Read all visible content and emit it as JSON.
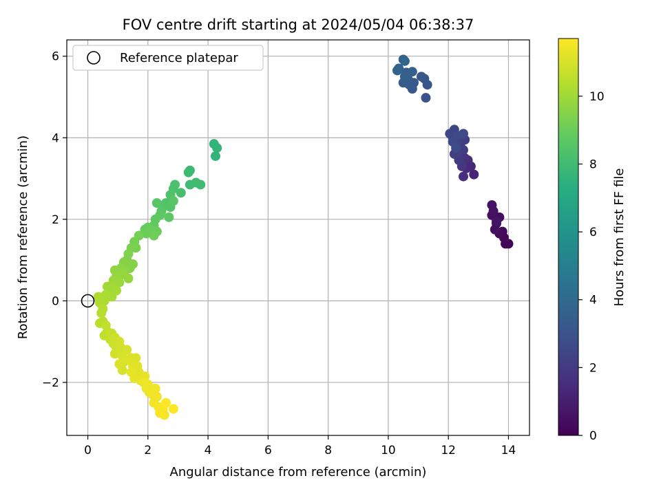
{
  "chart_data": {
    "type": "scatter",
    "title": "FOV centre drift starting at 2024/05/04 06:38:37",
    "xlabel": "Angular distance from reference (arcmin)",
    "ylabel": "Rotation from reference (arcmin)",
    "xlim": [
      -0.7,
      14.7
    ],
    "ylim": [
      -3.3,
      6.4
    ],
    "xticks": [
      0,
      2,
      4,
      6,
      8,
      10,
      12,
      14
    ],
    "xtick_labels": [
      "0",
      "2",
      "4",
      "6",
      "8",
      "10",
      "12",
      "14"
    ],
    "yticks": [
      -2,
      0,
      2,
      4,
      6
    ],
    "ytick_labels": [
      "−2",
      "0",
      "2",
      "4",
      "6"
    ],
    "grid": true,
    "legend": {
      "location": "upper-left",
      "entries": [
        {
          "label": "Reference platepar",
          "marker": "open-circle"
        }
      ]
    },
    "reference_point": {
      "x": 0,
      "y": 0
    },
    "colorbar": {
      "label": "Hours from first FF file",
      "colormap": "viridis",
      "range": [
        0,
        11.7
      ],
      "ticks": [
        0,
        2,
        4,
        6,
        8,
        10
      ],
      "tick_labels": [
        "0",
        "2",
        "4",
        "6",
        "8",
        "10"
      ]
    },
    "series": [
      {
        "points": [
          [
            14.0,
            1.4,
            0.1
          ],
          [
            13.9,
            1.4,
            0.15
          ],
          [
            13.85,
            1.55,
            0.2
          ],
          [
            13.8,
            1.7,
            0.25
          ],
          [
            13.7,
            1.65,
            0.3
          ],
          [
            13.6,
            1.9,
            0.35
          ],
          [
            13.7,
            2.05,
            0.4
          ],
          [
            13.55,
            1.75,
            0.45
          ],
          [
            13.45,
            2.1,
            0.5
          ],
          [
            13.5,
            2.2,
            0.55
          ],
          [
            13.45,
            2.35,
            0.6
          ],
          [
            13.6,
            1.95,
            0.65
          ],
          [
            12.85,
            3.1,
            1.2
          ],
          [
            12.75,
            3.3,
            1.3
          ],
          [
            12.6,
            3.25,
            1.4
          ],
          [
            12.65,
            3.45,
            1.5
          ],
          [
            12.5,
            3.05,
            1.6
          ],
          [
            12.55,
            3.5,
            1.7
          ],
          [
            12.45,
            3.3,
            1.8
          ],
          [
            12.4,
            3.55,
            1.9
          ],
          [
            12.35,
            3.45,
            2.0
          ],
          [
            12.5,
            3.7,
            2.0
          ],
          [
            12.55,
            3.95,
            2.1
          ],
          [
            12.4,
            3.85,
            2.1
          ],
          [
            12.3,
            3.65,
            2.2
          ],
          [
            12.2,
            3.6,
            2.2
          ],
          [
            12.45,
            4.05,
            2.3
          ],
          [
            12.35,
            3.95,
            2.3
          ],
          [
            12.25,
            3.85,
            2.4
          ],
          [
            12.15,
            4.0,
            2.4
          ],
          [
            12.05,
            4.1,
            2.5
          ],
          [
            12.2,
            4.2,
            2.5
          ],
          [
            12.3,
            4.05,
            2.6
          ],
          [
            12.15,
            3.9,
            2.6
          ],
          [
            12.5,
            4.1,
            2.7
          ],
          [
            12.25,
            3.75,
            2.7
          ],
          [
            11.25,
            4.98,
            3.0
          ],
          [
            11.3,
            5.3,
            3.1
          ],
          [
            11.2,
            5.45,
            3.1
          ],
          [
            11.1,
            5.5,
            3.2
          ],
          [
            10.8,
            5.2,
            3.2
          ],
          [
            10.85,
            5.35,
            3.3
          ],
          [
            10.7,
            5.3,
            3.3
          ],
          [
            10.5,
            5.35,
            3.4
          ],
          [
            10.65,
            5.45,
            3.4
          ],
          [
            10.6,
            5.6,
            3.5
          ],
          [
            10.55,
            5.5,
            3.5
          ],
          [
            10.8,
            5.62,
            3.6
          ],
          [
            10.35,
            5.7,
            3.6
          ],
          [
            10.3,
            5.65,
            3.7
          ],
          [
            10.5,
            5.92,
            3.7
          ],
          [
            10.55,
            5.88,
            3.8
          ],
          [
            4.3,
            3.75,
            7.6
          ],
          [
            4.25,
            3.55,
            7.6
          ],
          [
            4.2,
            3.85,
            7.6
          ],
          [
            3.4,
            3.2,
            7.9
          ],
          [
            3.35,
            3.15,
            7.9
          ],
          [
            3.75,
            2.85,
            8.0
          ],
          [
            3.6,
            2.9,
            8.0
          ],
          [
            3.4,
            2.85,
            8.0
          ],
          [
            3.1,
            2.65,
            8.2
          ],
          [
            2.9,
            2.85,
            8.3
          ],
          [
            2.85,
            2.75,
            8.3
          ],
          [
            2.75,
            2.6,
            8.4
          ],
          [
            2.6,
            2.4,
            8.4
          ],
          [
            2.75,
            2.3,
            8.5
          ],
          [
            2.5,
            2.3,
            8.5
          ],
          [
            2.45,
            2.2,
            8.6
          ],
          [
            2.3,
            2.4,
            8.6
          ],
          [
            2.85,
            2.45,
            8.6
          ],
          [
            2.7,
            2.05,
            8.7
          ],
          [
            2.4,
            2.1,
            8.7
          ],
          [
            2.25,
            2.0,
            8.8
          ],
          [
            2.2,
            1.85,
            8.8
          ],
          [
            2.0,
            1.8,
            8.9
          ],
          [
            1.9,
            1.75,
            8.9
          ],
          [
            2.1,
            1.75,
            9.0
          ],
          [
            1.95,
            1.65,
            9.0
          ],
          [
            2.3,
            1.7,
            9.0
          ],
          [
            2.2,
            1.6,
            9.1
          ],
          [
            1.7,
            1.6,
            9.2
          ],
          [
            1.55,
            1.45,
            9.2
          ],
          [
            1.6,
            1.3,
            9.3
          ],
          [
            1.45,
            1.3,
            9.3
          ],
          [
            1.35,
            1.15,
            9.4
          ],
          [
            1.3,
            1.0,
            9.4
          ],
          [
            1.2,
            0.95,
            9.5
          ],
          [
            1.5,
            0.9,
            9.5
          ],
          [
            1.4,
            0.8,
            9.5
          ],
          [
            1.25,
            0.75,
            9.6
          ],
          [
            1.1,
            0.8,
            9.6
          ],
          [
            1.0,
            0.7,
            9.7
          ],
          [
            0.9,
            0.75,
            9.7
          ],
          [
            0.95,
            0.6,
            9.8
          ],
          [
            1.2,
            0.65,
            9.8
          ],
          [
            1.35,
            0.55,
            9.8
          ],
          [
            1.05,
            0.45,
            9.9
          ],
          [
            0.85,
            0.5,
            9.9
          ],
          [
            0.8,
            0.35,
            10.0
          ],
          [
            0.65,
            0.35,
            10.0
          ],
          [
            0.75,
            0.2,
            10.0
          ],
          [
            0.95,
            0.25,
            10.1
          ],
          [
            0.8,
            0.1,
            10.1
          ],
          [
            0.6,
            0.15,
            10.2
          ],
          [
            0.55,
            0.0,
            10.2
          ],
          [
            0.35,
            0.1,
            10.3
          ],
          [
            0.4,
            -0.05,
            10.3
          ],
          [
            0.5,
            -0.2,
            10.4
          ],
          [
            0.45,
            -0.3,
            10.4
          ],
          [
            0.5,
            -0.5,
            10.5
          ],
          [
            0.4,
            -0.55,
            10.5
          ],
          [
            0.6,
            -0.6,
            10.6
          ],
          [
            0.65,
            -0.75,
            10.6
          ],
          [
            0.55,
            -0.85,
            10.6
          ],
          [
            0.8,
            -0.8,
            10.7
          ],
          [
            0.75,
            -0.95,
            10.7
          ],
          [
            0.9,
            -0.9,
            10.8
          ],
          [
            0.85,
            -1.05,
            10.8
          ],
          [
            0.95,
            -1.15,
            10.8
          ],
          [
            1.05,
            -1.0,
            10.9
          ],
          [
            1.1,
            -1.15,
            10.9
          ],
          [
            0.9,
            -1.3,
            10.9
          ],
          [
            1.15,
            -1.35,
            11.0
          ],
          [
            1.3,
            -1.2,
            11.0
          ],
          [
            1.2,
            -1.5,
            11.0
          ],
          [
            1.05,
            -1.55,
            11.1
          ],
          [
            1.35,
            -1.45,
            11.1
          ],
          [
            1.45,
            -1.4,
            11.1
          ],
          [
            1.5,
            -1.6,
            11.2
          ],
          [
            1.65,
            -1.6,
            11.2
          ],
          [
            1.7,
            -1.75,
            11.2
          ],
          [
            1.45,
            -1.75,
            11.3
          ],
          [
            1.55,
            -1.9,
            11.3
          ],
          [
            1.75,
            -1.95,
            11.3
          ],
          [
            1.9,
            -1.85,
            11.3
          ],
          [
            1.85,
            -2.0,
            11.4
          ],
          [
            1.95,
            -2.15,
            11.4
          ],
          [
            2.05,
            -2.25,
            11.4
          ],
          [
            2.15,
            -2.3,
            11.5
          ],
          [
            2.25,
            -2.15,
            11.5
          ],
          [
            2.3,
            -2.35,
            11.5
          ],
          [
            2.2,
            -2.5,
            11.5
          ],
          [
            2.35,
            -2.6,
            11.6
          ],
          [
            2.4,
            -2.75,
            11.6
          ],
          [
            2.55,
            -2.8,
            11.6
          ],
          [
            2.5,
            -2.65,
            11.6
          ],
          [
            2.6,
            -2.5,
            11.7
          ],
          [
            2.85,
            -2.65,
            11.7
          ],
          [
            1.15,
            -1.7,
            11.0
          ],
          [
            1.6,
            -1.4,
            11.1
          ],
          [
            2.0,
            -2.05,
            11.4
          ]
        ]
      }
    ]
  }
}
